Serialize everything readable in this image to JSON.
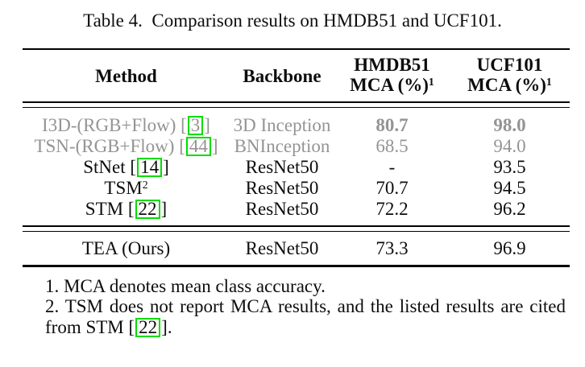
{
  "caption": "Table 4.  Comparison results on HMDB51 and UCF101.",
  "table": {
    "header": {
      "method": "Method",
      "backbone": "Backbone",
      "hmdb_line1": "HMDB51",
      "hmdb_line2": "MCA (%)",
      "hmdb_sup": "1",
      "ucf_line1": "UCF101",
      "ucf_line2": "MCA (%)",
      "ucf_sup": "1"
    },
    "rows": [
      {
        "method": "I3D-(RGB+Flow)",
        "cite": "3",
        "backbone": "3D Inception",
        "hmdb": "80.7",
        "ucf": "98.0",
        "dimmed": true,
        "values_bold": true
      },
      {
        "method": "TSN-(RGB+Flow)",
        "cite": "44",
        "backbone": "BNInception",
        "hmdb": "68.5",
        "ucf": "94.0",
        "dimmed": true,
        "values_bold": false
      },
      {
        "method": "StNet",
        "cite": "14",
        "backbone": "ResNet50",
        "hmdb": "-",
        "ucf": "93.5",
        "dimmed": false,
        "values_bold": false
      },
      {
        "method": "TSM",
        "superscript": "2",
        "backbone": "ResNet50",
        "hmdb": "70.7",
        "ucf": "94.5",
        "dimmed": false,
        "values_bold": false
      },
      {
        "method": "STM",
        "cite": "22",
        "backbone": "ResNet50",
        "hmdb": "72.2",
        "ucf": "96.2",
        "dimmed": false,
        "values_bold": false
      }
    ],
    "result_row": {
      "method": "TEA (Ours)",
      "backbone": "ResNet50",
      "hmdb": "73.3",
      "ucf": "96.9"
    }
  },
  "footnotes": {
    "note1": "1. MCA denotes mean class accuracy.",
    "note2_line1": "2. TSM does not report MCA results, and the listed results are cited",
    "note2_line2_prefix": "from STM [",
    "note2_cite": "22",
    "note2_line2_suffix": "]."
  },
  "colors": {
    "citation_box": "#00dd00",
    "dimmed_text": "#949494",
    "rule": "#000000"
  },
  "chart_data": {
    "type": "table",
    "title": "Table 4. Comparison results on HMDB51 and UCF101.",
    "columns": [
      "Method",
      "Backbone",
      "HMDB51 MCA (%)",
      "UCF101 MCA (%)"
    ],
    "rows_values": [
      [
        "I3D-(RGB+Flow) [3]",
        "3D Inception",
        80.7,
        98.0
      ],
      [
        "TSN-(RGB+Flow) [44]",
        "BNInception",
        68.5,
        94.0
      ],
      [
        "StNet [14]",
        "ResNet50",
        null,
        93.5
      ],
      [
        "TSM [2]",
        "ResNet50",
        70.7,
        94.5
      ],
      [
        "STM [22]",
        "ResNet50",
        72.2,
        96.2
      ],
      [
        "TEA (Ours)",
        "ResNet50",
        73.3,
        96.9
      ]
    ]
  }
}
